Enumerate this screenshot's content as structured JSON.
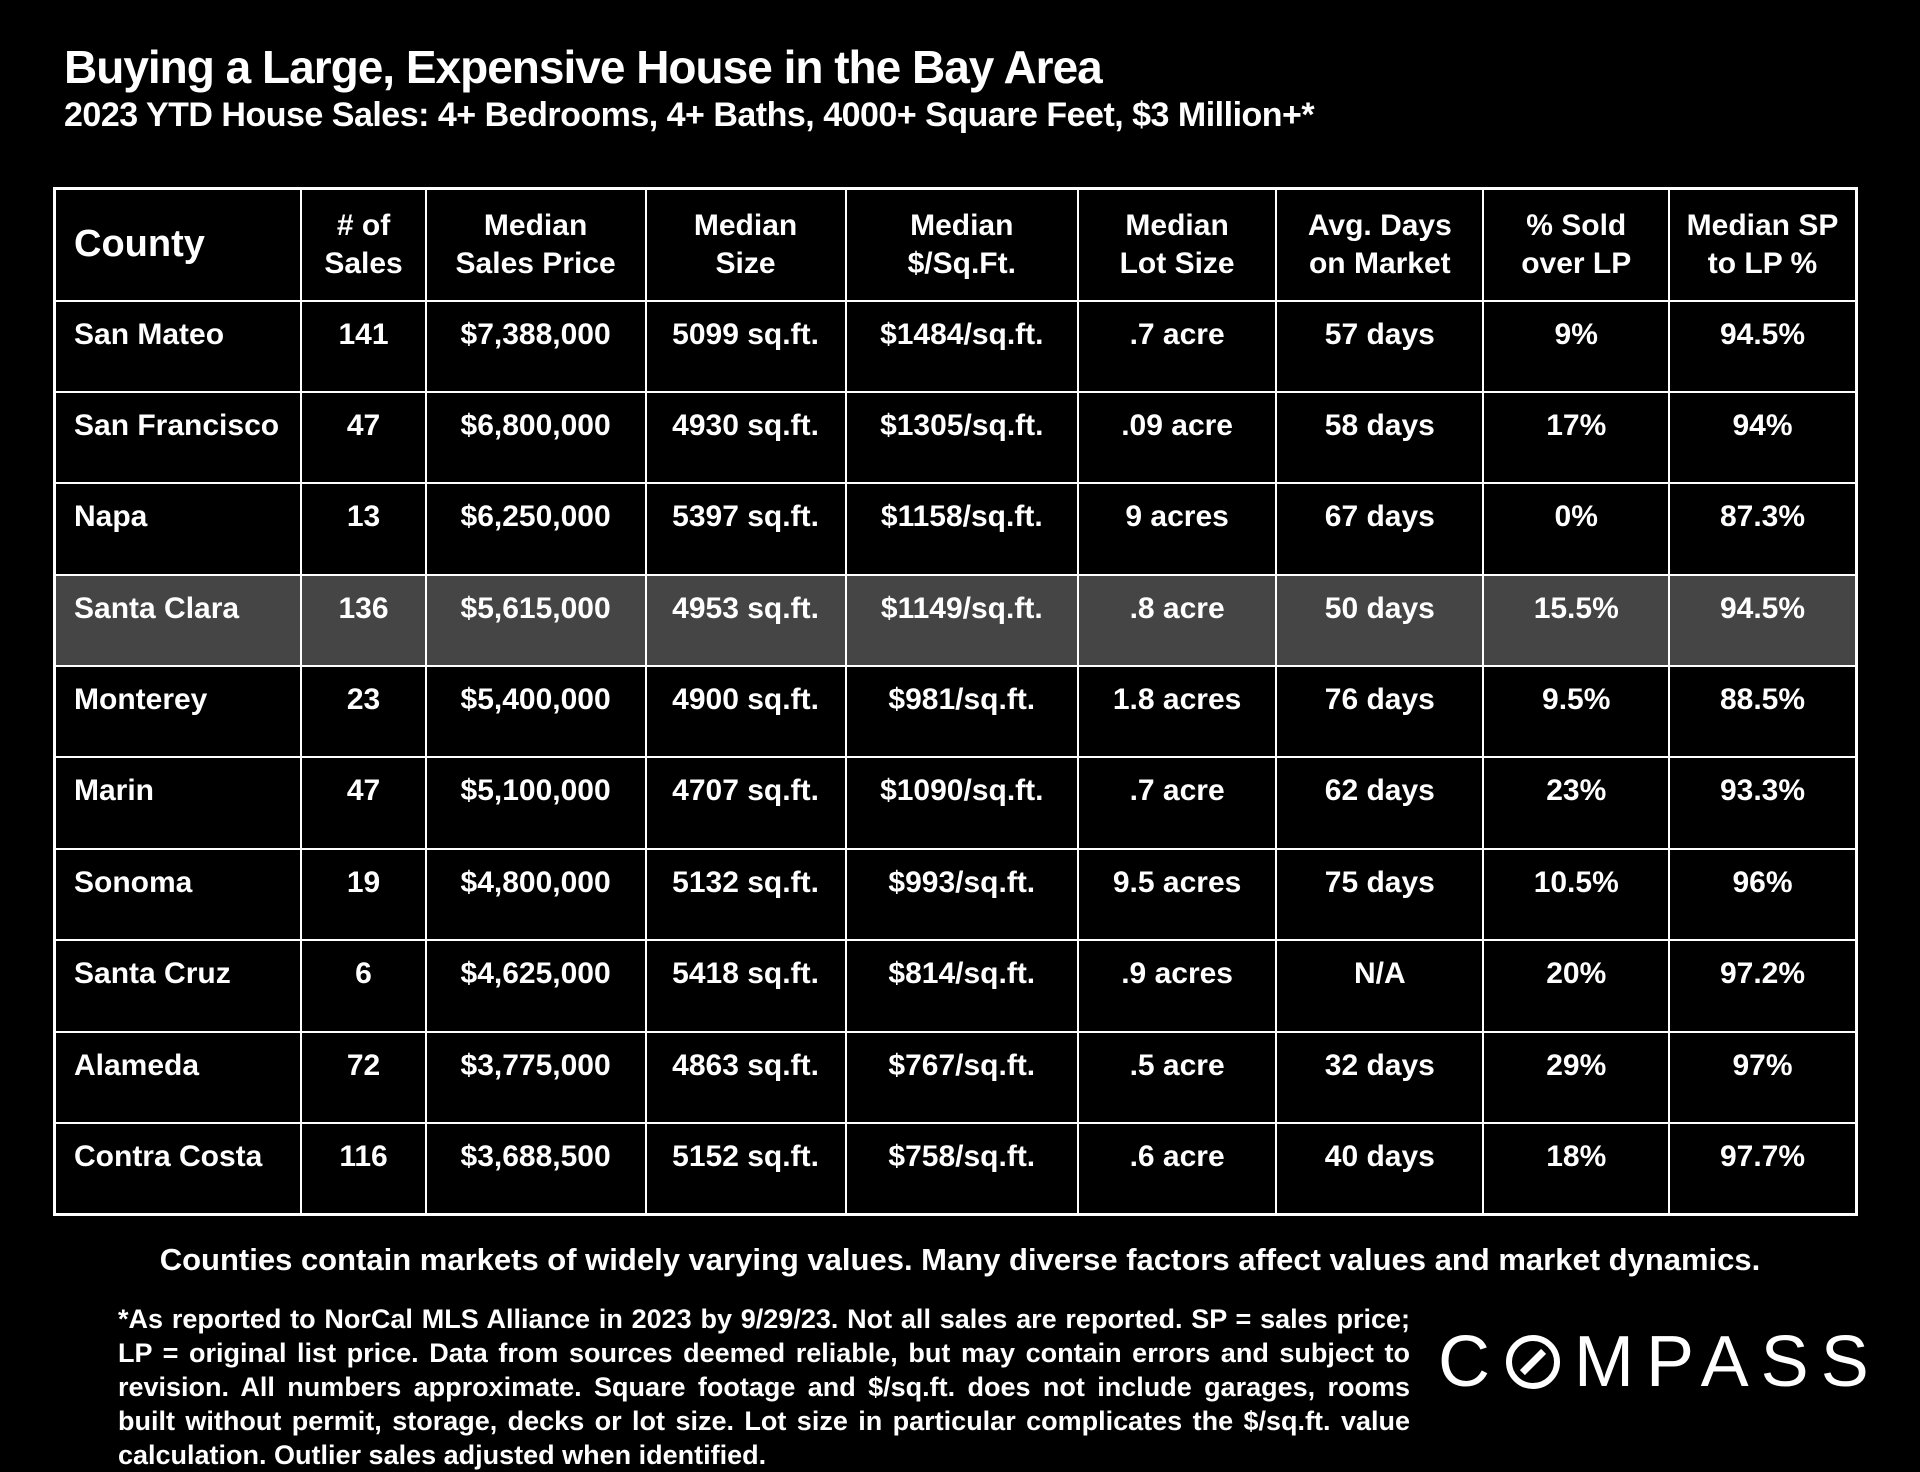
{
  "title": "Buying a Large, Expensive House in the Bay Area",
  "subtitle": "2023 YTD House Sales:  4+ Bedrooms, 4+ Baths, 4000+ Square Feet, $3 Million+*",
  "colors": {
    "background": "#000000",
    "text": "#ffffff",
    "border": "#ffffff",
    "highlight_row": "#454545"
  },
  "table": {
    "column_widths": [
      "13.7%",
      "6.9%",
      "12.2%",
      "11.1%",
      "12.9%",
      "11.0%",
      "11.5%",
      "10.3%",
      "10.4%"
    ],
    "headers": [
      {
        "line1": "County",
        "line2": ""
      },
      {
        "line1": "# of",
        "line2": "Sales"
      },
      {
        "line1": "Median",
        "line2": "Sales Price"
      },
      {
        "line1": "Median",
        "line2": "Size"
      },
      {
        "line1": "Median",
        "line2": "$/Sq.Ft."
      },
      {
        "line1": "Median",
        "line2": "Lot Size"
      },
      {
        "line1": "Avg. Days",
        "line2": "on Market"
      },
      {
        "line1": "% Sold",
        "line2": "over LP"
      },
      {
        "line1": "Median SP",
        "line2": "to LP %"
      }
    ],
    "rows": [
      {
        "highlighted": false,
        "cells": [
          "San Mateo",
          "141",
          "$7,388,000",
          "5099 sq.ft.",
          "$1484/sq.ft.",
          ".7 acre",
          "57 days",
          "9%",
          "94.5%"
        ]
      },
      {
        "highlighted": false,
        "cells": [
          "San Francisco",
          "47",
          "$6,800,000",
          "4930 sq.ft.",
          "$1305/sq.ft.",
          ".09 acre",
          "58 days",
          "17%",
          "94%"
        ]
      },
      {
        "highlighted": false,
        "cells": [
          "Napa",
          "13",
          "$6,250,000",
          "5397 sq.ft.",
          "$1158/sq.ft.",
          "9 acres",
          "67 days",
          "0%",
          "87.3%"
        ]
      },
      {
        "highlighted": true,
        "cells": [
          "Santa Clara",
          "136",
          "$5,615,000",
          "4953 sq.ft.",
          "$1149/sq.ft.",
          ".8 acre",
          "50 days",
          "15.5%",
          "94.5%"
        ]
      },
      {
        "highlighted": false,
        "cells": [
          "Monterey",
          "23",
          "$5,400,000",
          "4900 sq.ft.",
          "$981/sq.ft.",
          "1.8 acres",
          "76 days",
          "9.5%",
          "88.5%"
        ]
      },
      {
        "highlighted": false,
        "cells": [
          "Marin",
          "47",
          "$5,100,000",
          "4707 sq.ft.",
          "$1090/sq.ft.",
          ".7 acre",
          "62 days",
          "23%",
          "93.3%"
        ]
      },
      {
        "highlighted": false,
        "cells": [
          "Sonoma",
          "19",
          "$4,800,000",
          "5132 sq.ft.",
          "$993/sq.ft.",
          "9.5 acres",
          "75 days",
          "10.5%",
          "96%"
        ]
      },
      {
        "highlighted": false,
        "cells": [
          "Santa Cruz",
          "6",
          "$4,625,000",
          "5418 sq.ft.",
          "$814/sq.ft.",
          ".9 acres",
          "N/A",
          "20%",
          "97.2%"
        ]
      },
      {
        "highlighted": false,
        "cells": [
          "Alameda",
          "72",
          "$3,775,000",
          "4863 sq.ft.",
          "$767/sq.ft.",
          ".5 acre",
          "32 days",
          "29%",
          "97%"
        ]
      },
      {
        "highlighted": false,
        "cells": [
          "Contra Costa",
          "116",
          "$3,688,500",
          "5152 sq.ft.",
          "$758/sq.ft.",
          ".6 acre",
          "40 days",
          "18%",
          "97.7%"
        ]
      }
    ]
  },
  "footer_note": "Counties contain markets of widely varying values. Many diverse factors affect values and market dynamics.",
  "disclaimer": "*As reported to NorCal MLS Alliance in 2023 by 9/29/23. Not all sales are reported. SP = sales price;  LP = original list price. Data from sources deemed reliable, but may contain errors and subject to revision. All numbers approximate. Square footage and $/sq.ft. does not include garages, rooms built without permit, storage, decks or lot size. Lot size in particular complicates the $/sq.ft. value calculation. Outlier sales adjusted when identified.",
  "logo": {
    "full_name": "COMPASS",
    "prefix": "C",
    "suffix": "MPASS"
  },
  "chart_data": {
    "type": "table",
    "title": "Buying a Large, Expensive House in the Bay Area",
    "subtitle": "2023 YTD House Sales: 4+ Bedrooms, 4+ Baths, 4000+ Square Feet, $3 Million+*",
    "columns": [
      "County",
      "# of Sales",
      "Median Sales Price",
      "Median Size",
      "Median $/Sq.Ft.",
      "Median Lot Size",
      "Avg. Days on Market",
      "% Sold over LP",
      "Median SP to LP %"
    ],
    "rows": [
      [
        "San Mateo",
        141,
        "$7,388,000",
        "5099 sq.ft.",
        "$1484/sq.ft.",
        ".7 acre",
        "57 days",
        "9%",
        "94.5%"
      ],
      [
        "San Francisco",
        47,
        "$6,800,000",
        "4930 sq.ft.",
        "$1305/sq.ft.",
        ".09 acre",
        "58 days",
        "17%",
        "94%"
      ],
      [
        "Napa",
        13,
        "$6,250,000",
        "5397 sq.ft.",
        "$1158/sq.ft.",
        "9 acres",
        "67 days",
        "0%",
        "87.3%"
      ],
      [
        "Santa Clara",
        136,
        "$5,615,000",
        "4953 sq.ft.",
        "$1149/sq.ft.",
        ".8 acre",
        "50 days",
        "15.5%",
        "94.5%"
      ],
      [
        "Monterey",
        23,
        "$5,400,000",
        "4900 sq.ft.",
        "$981/sq.ft.",
        "1.8 acres",
        "76 days",
        "9.5%",
        "88.5%"
      ],
      [
        "Marin",
        47,
        "$5,100,000",
        "4707 sq.ft.",
        "$1090/sq.ft.",
        ".7 acre",
        "62 days",
        "23%",
        "93.3%"
      ],
      [
        "Sonoma",
        19,
        "$4,800,000",
        "5132 sq.ft.",
        "$993/sq.ft.",
        "9.5 acres",
        "75 days",
        "10.5%",
        "96%"
      ],
      [
        "Santa Cruz",
        6,
        "$4,625,000",
        "5418 sq.ft.",
        "$814/sq.ft.",
        ".9 acres",
        "N/A",
        "20%",
        "97.2%"
      ],
      [
        "Alameda",
        72,
        "$3,775,000",
        "4863 sq.ft.",
        "$767/sq.ft.",
        ".5 acre",
        "32 days",
        "29%",
        "97%"
      ],
      [
        "Contra Costa",
        116,
        "$3,688,500",
        "5152 sq.ft.",
        "$758/sq.ft.",
        ".6 acre",
        "40 days",
        "18%",
        "97.7%"
      ]
    ],
    "highlighted_row": "Santa Clara",
    "legend_position": "none",
    "grid": true
  }
}
